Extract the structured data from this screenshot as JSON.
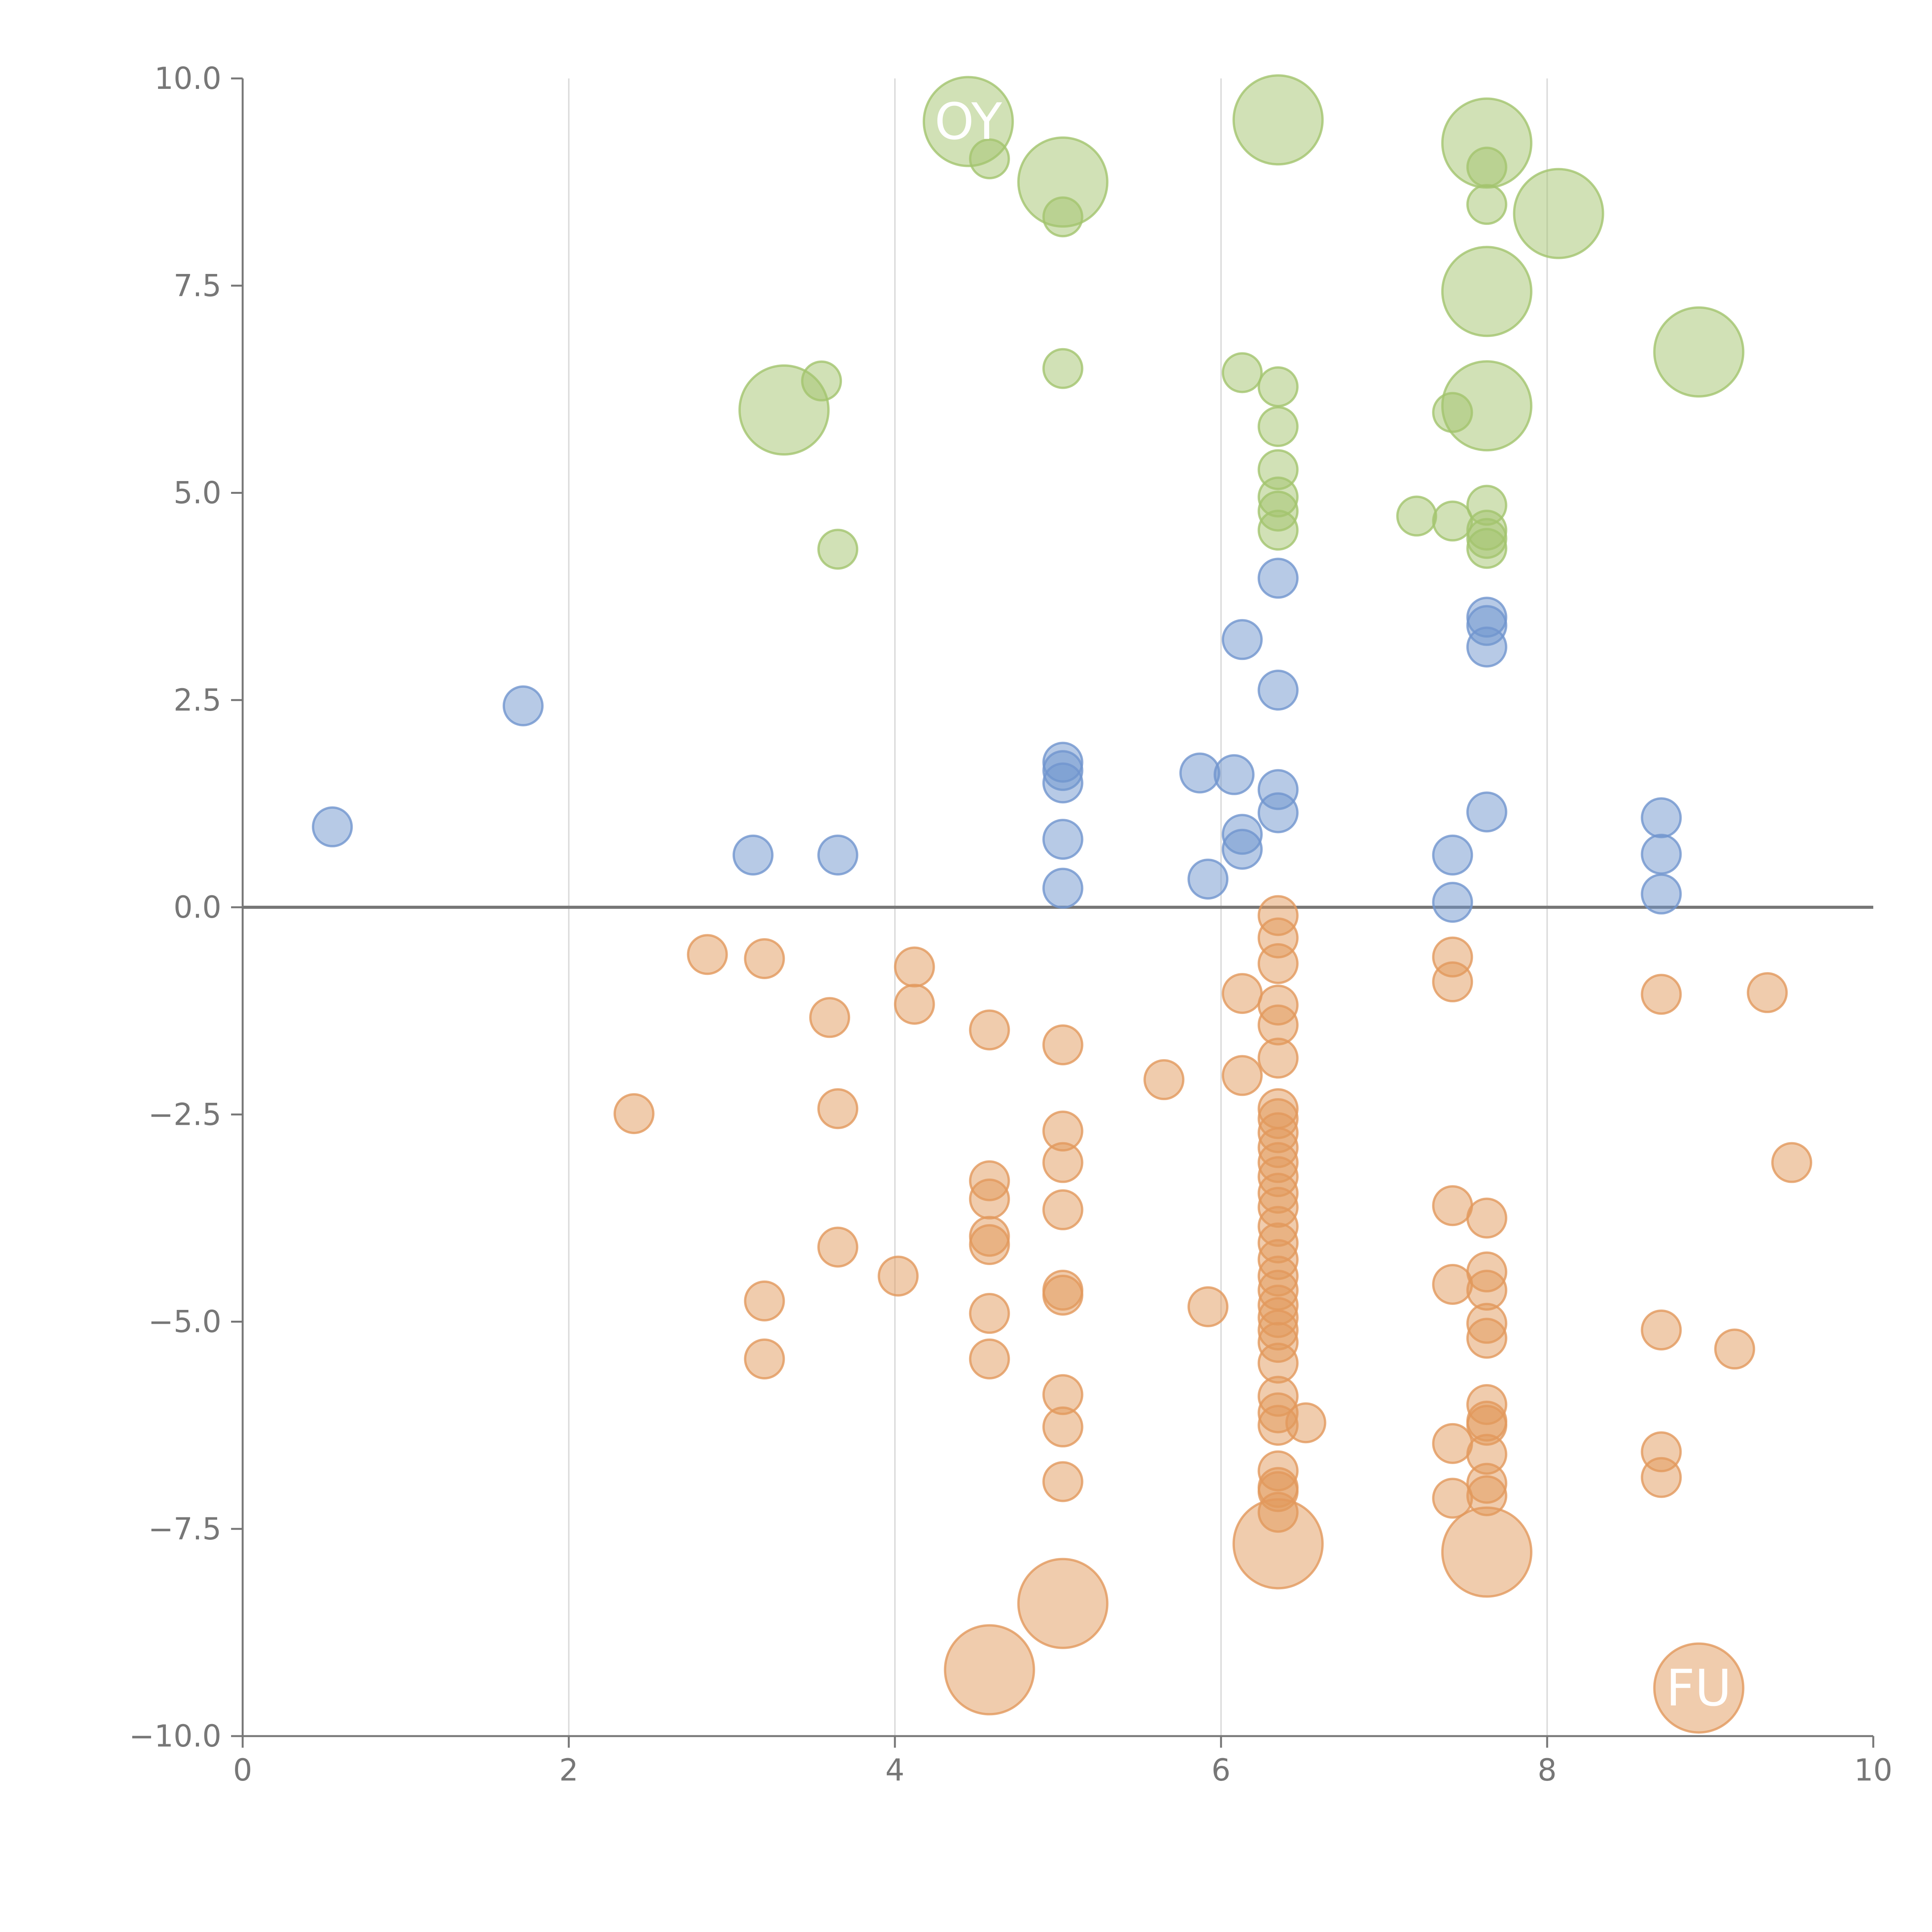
{
  "chart_data": {
    "type": "scatter",
    "title": "",
    "xlabel": "",
    "ylabel": "",
    "xlim": [
      0,
      10
    ],
    "ylim": [
      -10,
      10
    ],
    "grid": {
      "x": true,
      "y": false
    },
    "legend": "none",
    "x_ticks": [
      "0",
      "2",
      "4",
      "6",
      "8",
      "10"
    ],
    "y_ticks": [
      "−10.0",
      "−7.5",
      "−5.0",
      "−2.5",
      "0.0",
      "2.5",
      "5.0",
      "7.5",
      "10.0"
    ],
    "zero_line": 0,
    "colors": {
      "green": "#a3c46e",
      "blue": "#7095ce",
      "orange": "#e2995c"
    },
    "series": [
      {
        "name": "green",
        "color": "#a3c46e",
        "points": [
          {
            "x": 3.55,
            "y": 6.35,
            "s": 1
          },
          {
            "x": 3.65,
            "y": 4.32,
            "s": 1
          },
          {
            "x": 4.58,
            "y": 9.03,
            "s": 1
          },
          {
            "x": 5.03,
            "y": 8.33,
            "s": 1
          },
          {
            "x": 5.03,
            "y": 6.5,
            "s": 1
          },
          {
            "x": 6.13,
            "y": 6.45,
            "s": 1
          },
          {
            "x": 6.35,
            "y": 6.28,
            "s": 1
          },
          {
            "x": 6.35,
            "y": 5.8,
            "s": 1
          },
          {
            "x": 6.35,
            "y": 5.28,
            "s": 1
          },
          {
            "x": 6.35,
            "y": 4.95,
            "s": 1
          },
          {
            "x": 6.35,
            "y": 4.78,
            "s": 1
          },
          {
            "x": 6.35,
            "y": 4.55,
            "s": 1
          },
          {
            "x": 7.2,
            "y": 4.72,
            "s": 1
          },
          {
            "x": 7.42,
            "y": 4.66,
            "s": 1
          },
          {
            "x": 7.42,
            "y": 5.97,
            "s": 1
          },
          {
            "x": 7.63,
            "y": 8.93,
            "s": 1
          },
          {
            "x": 7.63,
            "y": 8.48,
            "s": 1
          },
          {
            "x": 7.63,
            "y": 4.85,
            "s": 1
          },
          {
            "x": 7.63,
            "y": 4.55,
            "s": 1
          },
          {
            "x": 7.63,
            "y": 4.45,
            "s": 1
          },
          {
            "x": 7.63,
            "y": 4.33,
            "s": 1
          },
          {
            "x": 3.32,
            "y": 6.0,
            "s": 2.3
          },
          {
            "x": 4.45,
            "y": 9.48,
            "s": 2.3
          },
          {
            "x": 5.03,
            "y": 8.75,
            "s": 2.3
          },
          {
            "x": 6.35,
            "y": 9.5,
            "s": 2.3
          },
          {
            "x": 7.63,
            "y": 9.22,
            "s": 2.3
          },
          {
            "x": 8.07,
            "y": 8.37,
            "s": 2.3
          },
          {
            "x": 7.63,
            "y": 7.43,
            "s": 2.3
          },
          {
            "x": 8.93,
            "y": 6.7,
            "s": 2.3
          },
          {
            "x": 7.63,
            "y": 6.05,
            "s": 2.3
          }
        ]
      },
      {
        "name": "blue",
        "color": "#7095ce",
        "points": [
          {
            "x": 0.55,
            "y": 0.97,
            "s": 1
          },
          {
            "x": 1.72,
            "y": 2.43,
            "s": 1
          },
          {
            "x": 3.13,
            "y": 0.63,
            "s": 1
          },
          {
            "x": 3.65,
            "y": 0.63,
            "s": 1
          },
          {
            "x": 5.03,
            "y": 1.75,
            "s": 1
          },
          {
            "x": 5.03,
            "y": 1.65,
            "s": 1
          },
          {
            "x": 5.03,
            "y": 1.5,
            "s": 1
          },
          {
            "x": 5.03,
            "y": 0.82,
            "s": 1
          },
          {
            "x": 5.03,
            "y": 0.23,
            "s": 1
          },
          {
            "x": 5.87,
            "y": 1.62,
            "s": 1
          },
          {
            "x": 5.92,
            "y": 0.34,
            "s": 1
          },
          {
            "x": 6.08,
            "y": 1.6,
            "s": 1
          },
          {
            "x": 6.13,
            "y": 3.23,
            "s": 1
          },
          {
            "x": 6.13,
            "y": 0.88,
            "s": 1
          },
          {
            "x": 6.13,
            "y": 0.7,
            "s": 1
          },
          {
            "x": 6.35,
            "y": 3.97,
            "s": 1
          },
          {
            "x": 6.35,
            "y": 2.62,
            "s": 1
          },
          {
            "x": 6.35,
            "y": 1.42,
            "s": 1
          },
          {
            "x": 6.35,
            "y": 1.14,
            "s": 1
          },
          {
            "x": 7.42,
            "y": 0.63,
            "s": 1
          },
          {
            "x": 7.42,
            "y": 0.06,
            "s": 1
          },
          {
            "x": 7.63,
            "y": 3.5,
            "s": 1
          },
          {
            "x": 7.63,
            "y": 3.4,
            "s": 1
          },
          {
            "x": 7.63,
            "y": 3.14,
            "s": 1
          },
          {
            "x": 7.63,
            "y": 1.15,
            "s": 1
          },
          {
            "x": 8.7,
            "y": 1.08,
            "s": 1
          },
          {
            "x": 8.7,
            "y": 0.64,
            "s": 1
          },
          {
            "x": 8.7,
            "y": 0.16,
            "s": 1
          }
        ]
      },
      {
        "name": "orange",
        "color": "#e2995c",
        "points": [
          {
            "x": 2.4,
            "y": -2.49,
            "s": 1
          },
          {
            "x": 2.85,
            "y": -0.57,
            "s": 1
          },
          {
            "x": 3.2,
            "y": -0.62,
            "s": 1
          },
          {
            "x": 3.2,
            "y": -4.75,
            "s": 1
          },
          {
            "x": 3.2,
            "y": -5.45,
            "s": 1
          },
          {
            "x": 3.6,
            "y": -1.33,
            "s": 1
          },
          {
            "x": 3.65,
            "y": -2.43,
            "s": 1
          },
          {
            "x": 3.65,
            "y": -4.1,
            "s": 1
          },
          {
            "x": 4.02,
            "y": -4.45,
            "s": 1
          },
          {
            "x": 4.12,
            "y": -0.72,
            "s": 1
          },
          {
            "x": 4.12,
            "y": -1.17,
            "s": 1
          },
          {
            "x": 4.58,
            "y": -1.48,
            "s": 1
          },
          {
            "x": 4.58,
            "y": -3.3,
            "s": 1
          },
          {
            "x": 4.58,
            "y": -3.52,
            "s": 1
          },
          {
            "x": 4.58,
            "y": -3.97,
            "s": 1
          },
          {
            "x": 4.58,
            "y": -4.07,
            "s": 1
          },
          {
            "x": 4.58,
            "y": -4.9,
            "s": 1
          },
          {
            "x": 4.58,
            "y": -5.45,
            "s": 1
          },
          {
            "x": 5.03,
            "y": -1.66,
            "s": 1
          },
          {
            "x": 5.03,
            "y": -2.7,
            "s": 1
          },
          {
            "x": 5.03,
            "y": -3.08,
            "s": 1
          },
          {
            "x": 5.03,
            "y": -3.65,
            "s": 1
          },
          {
            "x": 5.03,
            "y": -4.62,
            "s": 1
          },
          {
            "x": 5.03,
            "y": -4.68,
            "s": 1
          },
          {
            "x": 5.03,
            "y": -5.88,
            "s": 1
          },
          {
            "x": 5.03,
            "y": -6.27,
            "s": 1
          },
          {
            "x": 5.03,
            "y": -6.93,
            "s": 1
          },
          {
            "x": 5.65,
            "y": -2.08,
            "s": 1
          },
          {
            "x": 5.92,
            "y": -4.82,
            "s": 1
          },
          {
            "x": 6.13,
            "y": -1.04,
            "s": 1
          },
          {
            "x": 6.13,
            "y": -2.03,
            "s": 1
          },
          {
            "x": 6.35,
            "y": -0.1,
            "s": 1
          },
          {
            "x": 6.35,
            "y": -0.37,
            "s": 1
          },
          {
            "x": 6.35,
            "y": -0.68,
            "s": 1
          },
          {
            "x": 6.35,
            "y": -1.18,
            "s": 1
          },
          {
            "x": 6.35,
            "y": -1.42,
            "s": 1
          },
          {
            "x": 6.35,
            "y": -1.82,
            "s": 1
          },
          {
            "x": 6.35,
            "y": -2.43,
            "s": 1
          },
          {
            "x": 6.35,
            "y": -2.55,
            "s": 1
          },
          {
            "x": 6.35,
            "y": -2.72,
            "s": 1
          },
          {
            "x": 6.35,
            "y": -2.9,
            "s": 1
          },
          {
            "x": 6.35,
            "y": -3.08,
            "s": 1
          },
          {
            "x": 6.35,
            "y": -3.25,
            "s": 1
          },
          {
            "x": 6.35,
            "y": -3.45,
            "s": 1
          },
          {
            "x": 6.35,
            "y": -3.62,
            "s": 1
          },
          {
            "x": 6.35,
            "y": -3.85,
            "s": 1
          },
          {
            "x": 6.35,
            "y": -4.05,
            "s": 1
          },
          {
            "x": 6.35,
            "y": -4.25,
            "s": 1
          },
          {
            "x": 6.35,
            "y": -4.45,
            "s": 1
          },
          {
            "x": 6.35,
            "y": -4.62,
            "s": 1
          },
          {
            "x": 6.35,
            "y": -4.8,
            "s": 1
          },
          {
            "x": 6.35,
            "y": -4.95,
            "s": 1
          },
          {
            "x": 6.35,
            "y": -5.1,
            "s": 1
          },
          {
            "x": 6.35,
            "y": -5.25,
            "s": 1
          },
          {
            "x": 6.35,
            "y": -5.5,
            "s": 1
          },
          {
            "x": 6.35,
            "y": -5.9,
            "s": 1
          },
          {
            "x": 6.35,
            "y": -6.1,
            "s": 1
          },
          {
            "x": 6.35,
            "y": -6.25,
            "s": 1
          },
          {
            "x": 6.35,
            "y": -6.8,
            "s": 1
          },
          {
            "x": 6.35,
            "y": -7.0,
            "s": 1
          },
          {
            "x": 6.35,
            "y": -7.05,
            "s": 1
          },
          {
            "x": 6.35,
            "y": -7.3,
            "s": 1
          },
          {
            "x": 6.52,
            "y": -6.22,
            "s": 1
          },
          {
            "x": 7.42,
            "y": -0.6,
            "s": 1
          },
          {
            "x": 7.42,
            "y": -0.9,
            "s": 1
          },
          {
            "x": 7.42,
            "y": -3.6,
            "s": 1
          },
          {
            "x": 7.42,
            "y": -4.55,
            "s": 1
          },
          {
            "x": 7.42,
            "y": -6.47,
            "s": 1
          },
          {
            "x": 7.42,
            "y": -7.13,
            "s": 1
          },
          {
            "x": 7.63,
            "y": -3.75,
            "s": 1
          },
          {
            "x": 7.63,
            "y": -4.4,
            "s": 1
          },
          {
            "x": 7.63,
            "y": -4.62,
            "s": 1
          },
          {
            "x": 7.63,
            "y": -5.02,
            "s": 1
          },
          {
            "x": 7.63,
            "y": -5.2,
            "s": 1
          },
          {
            "x": 7.63,
            "y": -6.0,
            "s": 1
          },
          {
            "x": 7.63,
            "y": -6.2,
            "s": 1
          },
          {
            "x": 7.63,
            "y": -6.25,
            "s": 1
          },
          {
            "x": 7.63,
            "y": -6.6,
            "s": 1
          },
          {
            "x": 7.63,
            "y": -6.95,
            "s": 1
          },
          {
            "x": 7.63,
            "y": -7.1,
            "s": 1
          },
          {
            "x": 8.7,
            "y": -1.05,
            "s": 1
          },
          {
            "x": 8.7,
            "y": -5.1,
            "s": 1
          },
          {
            "x": 8.7,
            "y": -6.57,
            "s": 1
          },
          {
            "x": 8.7,
            "y": -6.88,
            "s": 1
          },
          {
            "x": 9.15,
            "y": -5.33,
            "s": 1
          },
          {
            "x": 9.35,
            "y": -1.03,
            "s": 1
          },
          {
            "x": 9.5,
            "y": -3.08,
            "s": 1
          },
          {
            "x": 4.58,
            "y": -9.2,
            "s": 2.3
          },
          {
            "x": 5.03,
            "y": -8.4,
            "s": 2.3
          },
          {
            "x": 6.35,
            "y": -7.68,
            "s": 2.3
          },
          {
            "x": 7.63,
            "y": -7.78,
            "s": 2.3
          },
          {
            "x": 8.93,
            "y": -9.42,
            "s": 2.3
          }
        ]
      }
    ],
    "annotations": [
      {
        "text": "OY",
        "x": 4.45,
        "y": 9.48
      },
      {
        "text": "FU",
        "x": 8.93,
        "y": -9.42
      }
    ]
  }
}
